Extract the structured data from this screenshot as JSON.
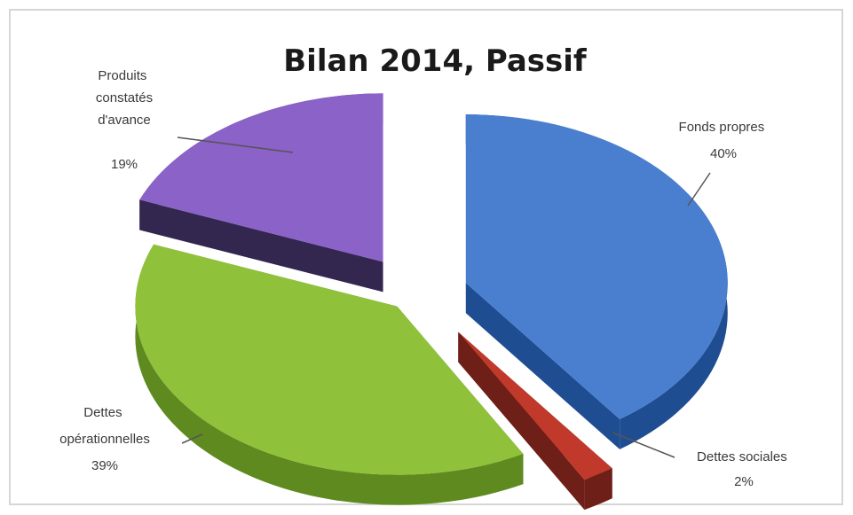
{
  "chart_data": {
    "type": "pie",
    "title": "Bilan 2014, Passif",
    "slices": [
      {
        "label": "Fonds propres",
        "percent_label": "40%",
        "value": 40,
        "color": "#4a7fd0",
        "side_color": "#1f4d92"
      },
      {
        "label": "Dettes sociales",
        "percent_label": "2%",
        "value": 2,
        "color": "#c0392b",
        "side_color": "#6d1f18"
      },
      {
        "label": "Dettes opérationnelles",
        "percent_label": "39%",
        "value": 39,
        "color": "#8fc13a",
        "side_color": "#5e8a1f"
      },
      {
        "label": "Produits constatés d'avance",
        "percent_label": "19%",
        "value": 19,
        "color": "#8a62c8",
        "side_color": "#33264f"
      }
    ],
    "legend": "none",
    "style": "3d-exploded"
  }
}
